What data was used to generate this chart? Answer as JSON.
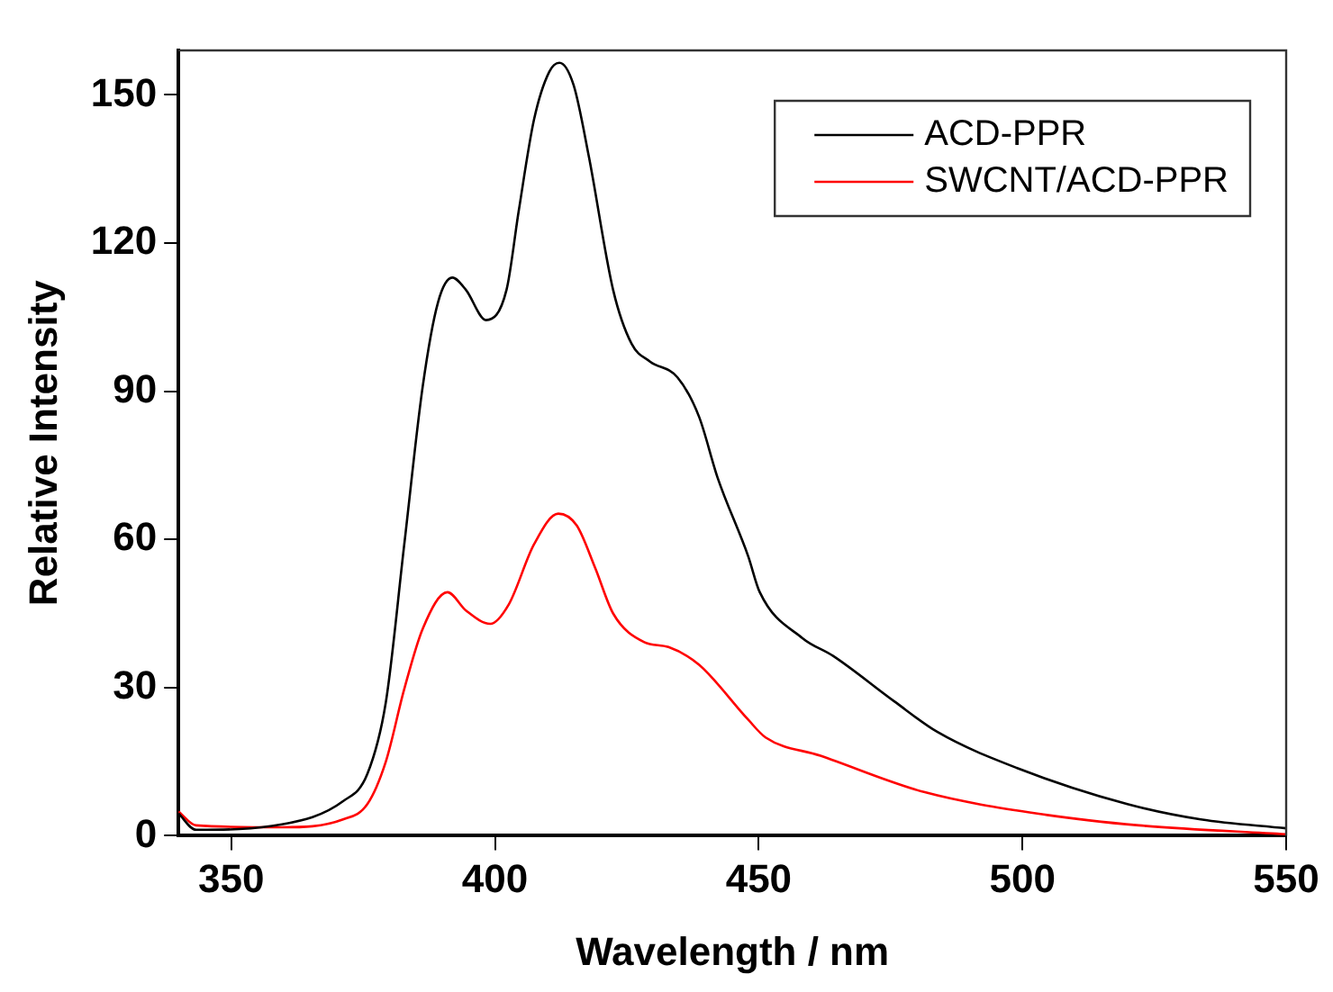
{
  "chart_data": {
    "type": "line",
    "xlabel": "Wavelength / nm",
    "ylabel": "Relative Intensity",
    "xlim": [
      340,
      550
    ],
    "xticks": [
      350,
      400,
      450,
      500,
      550
    ],
    "ylim": [
      0,
      159
    ],
    "yticks": [
      0,
      30,
      60,
      90,
      120,
      150
    ],
    "legend": "top right",
    "grid": false,
    "marker": "none",
    "line_style": "solid",
    "series": [
      {
        "name": "ACD-PPR",
        "color": "#000000",
        "x": [
          340,
          343.3,
          359.6,
          371.2,
          375.8,
          379.3,
          382.8,
          386.3,
          389.2,
          391.9,
          394.5,
          398.3,
          402.2,
          404.5,
          407.4,
          410.3,
          412.2,
          414.9,
          417.8,
          422.4,
          425.9,
          429.4,
          434.6,
          438.7,
          442.2,
          448,
          450.2,
          458.3,
          464.1,
          475.7,
          483.9,
          499,
          519.9,
          533.8,
          550
        ],
        "values": [
          4.5,
          1.2,
          2.3,
          7,
          12.5,
          27,
          59,
          91,
          108,
          113,
          110.5,
          104.4,
          110.6,
          126.5,
          145,
          154.7,
          156.5,
          152,
          137.5,
          110.5,
          99.6,
          96,
          92.8,
          84.8,
          72.5,
          56.6,
          49.3,
          40,
          36.4,
          27.2,
          21,
          13.7,
          6.4,
          3.3,
          1.5
        ]
      },
      {
        "name": "SWCNT/ACD-PPR",
        "color": "#ff0000",
        "x": [
          340,
          343.3,
          359.6,
          371.2,
          375.8,
          379.3,
          382.8,
          386.3,
          391,
          394.5,
          399.1,
          402.6,
          407.4,
          412,
          415.5,
          419,
          422.4,
          428.3,
          432.9,
          438.7,
          448,
          451.3,
          461.7,
          481.5,
          504.7,
          522.1,
          550
        ],
        "values": [
          4.9,
          2.1,
          1.7,
          3.3,
          6.4,
          15,
          29.7,
          41.9,
          49.3,
          45.6,
          42.9,
          46.8,
          59,
          65.2,
          62.8,
          54.2,
          45,
          39.2,
          38.2,
          34.6,
          23.5,
          19.9,
          16.2,
          8.8,
          4.2,
          2.1,
          0.3
        ]
      }
    ]
  }
}
